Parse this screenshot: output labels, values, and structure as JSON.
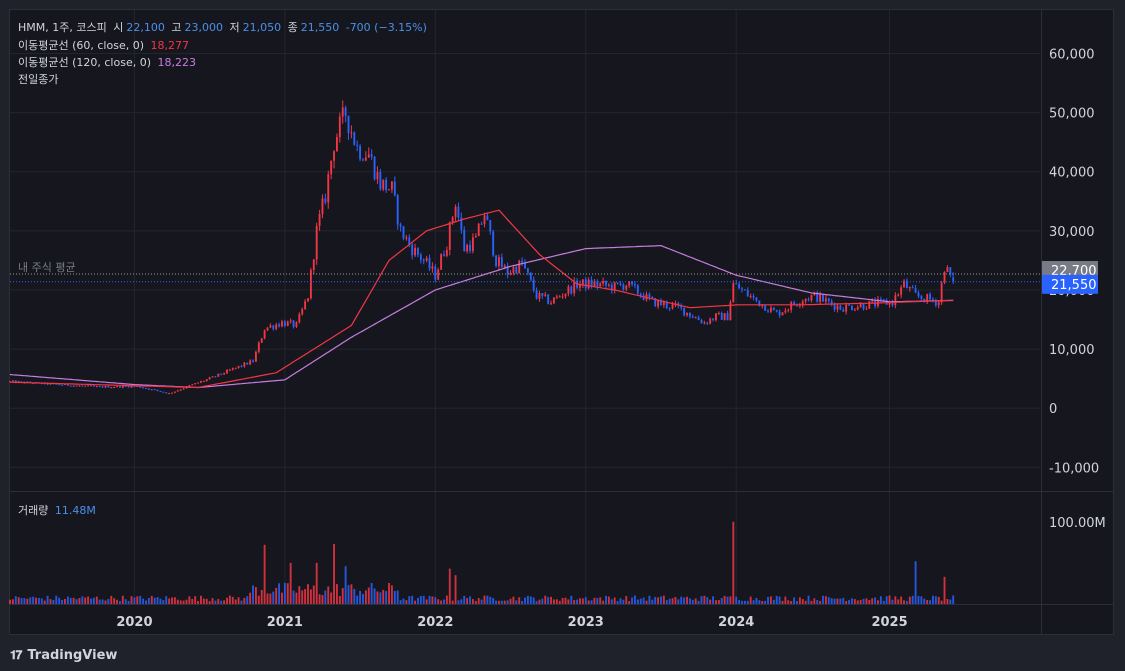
{
  "header": {
    "symbol": "HMM, 1주, 코스피",
    "open_label": "시",
    "open": "22,100",
    "high_label": "고",
    "high": "23,000",
    "low_label": "저",
    "low": "21,050",
    "close_label": "종",
    "close": "21,550",
    "change": "-700 (−3.15%)"
  },
  "indicators": {
    "ma60_label": "이동평균선 (60, close, 0)",
    "ma60_value": "18,277",
    "ma120_label": "이동평균선 (120, close, 0)",
    "ma120_value": "18,223",
    "prev_close_label": "전일종가"
  },
  "volume_pane": {
    "label": "거래량",
    "value": "11.48M",
    "axis_tick": "100.00M"
  },
  "footer": {
    "brand": "TradingView"
  },
  "chart_data": [
    {
      "type": "candlestick",
      "title": "HMM, 1주, 코스피",
      "ylim": [
        -14000,
        66000
      ],
      "y_ticks": [
        -10000,
        0,
        10000,
        20000,
        30000,
        40000,
        50000,
        60000
      ],
      "y_tick_labels": [
        "-10,000",
        "0",
        "10,000",
        "20,000",
        "30,000",
        "40,000",
        "50,000",
        "60,000"
      ],
      "x_ticks": [
        "2019-12-30",
        "2020-12-28",
        "2021-12-27",
        "2022-12-26",
        "2023-12-25",
        "2024-12-30"
      ],
      "x_tick_labels": [
        "2020",
        "2021",
        "2022",
        "2023",
        "2024",
        "2025"
      ],
      "x_start": "2019-03-04",
      "x_end": "2025-12-29",
      "grid": true,
      "avg_price_line": {
        "label": "내 주식 평균",
        "value": 22700
      },
      "price_badges": [
        {
          "text": "22,700",
          "value": 22700,
          "color": "#787b86"
        },
        {
          "text": "21,550",
          "value": 21550,
          "color": "#2962ff"
        }
      ],
      "up_color": "#f23645",
      "down_color": "#2962ff",
      "ma60_color": "#f23645",
      "ma120_color": "#c77de0",
      "close_anchors": [
        [
          "2019-03-04",
          4500
        ],
        [
          "2019-07-01",
          4000
        ],
        [
          "2019-10-07",
          3600
        ],
        [
          "2020-01-06",
          3700
        ],
        [
          "2020-03-23",
          2500
        ],
        [
          "2020-05-11",
          3800
        ],
        [
          "2020-07-06",
          5200
        ],
        [
          "2020-09-07",
          7000
        ],
        [
          "2020-10-12",
          8000
        ],
        [
          "2020-11-09",
          13500
        ],
        [
          "2020-12-21",
          14500
        ],
        [
          "2021-01-25",
          14000
        ],
        [
          "2021-02-22",
          19000
        ],
        [
          "2021-03-15",
          30000
        ],
        [
          "2021-04-05",
          36000
        ],
        [
          "2021-04-26",
          45000
        ],
        [
          "2021-05-24",
          50000
        ],
        [
          "2021-06-21",
          44000
        ],
        [
          "2021-07-19",
          43000
        ],
        [
          "2021-08-16",
          38000
        ],
        [
          "2021-09-13",
          37000
        ],
        [
          "2021-10-04",
          30000
        ],
        [
          "2021-11-01",
          27000
        ],
        [
          "2021-11-29",
          25000
        ],
        [
          "2021-12-27",
          22500
        ],
        [
          "2022-01-24",
          28000
        ],
        [
          "2022-02-14",
          35000
        ],
        [
          "2022-03-07",
          27000
        ],
        [
          "2022-04-04",
          28500
        ],
        [
          "2022-04-25",
          33000
        ],
        [
          "2022-05-23",
          25000
        ],
        [
          "2022-06-20",
          23000
        ],
        [
          "2022-07-25",
          24500
        ],
        [
          "2022-08-29",
          19000
        ],
        [
          "2022-10-03",
          18000
        ],
        [
          "2022-12-05",
          21000
        ],
        [
          "2023-01-16",
          21000
        ],
        [
          "2023-03-06",
          20500
        ],
        [
          "2023-04-03",
          21000
        ],
        [
          "2023-06-05",
          18000
        ],
        [
          "2023-08-07",
          17000
        ],
        [
          "2023-10-09",
          14500
        ],
        [
          "2023-11-06",
          15500
        ],
        [
          "2023-12-04",
          15500
        ],
        [
          "2023-12-18",
          21000
        ],
        [
          "2024-02-05",
          18500
        ],
        [
          "2024-04-01",
          16000
        ],
        [
          "2024-06-03",
          18500
        ],
        [
          "2024-07-01",
          19000
        ],
        [
          "2024-09-02",
          17000
        ],
        [
          "2024-11-04",
          17500
        ],
        [
          "2025-01-06",
          18000
        ],
        [
          "2025-02-03",
          21000
        ],
        [
          "2025-03-03",
          19000
        ],
        [
          "2025-04-28",
          18000
        ],
        [
          "2025-05-12",
          24000
        ],
        [
          "2025-06-02",
          21550
        ]
      ],
      "ma60_anchors": [
        [
          "2019-03-04",
          4400
        ],
        [
          "2020-06-01",
          3500
        ],
        [
          "2020-12-07",
          6000
        ],
        [
          "2021-06-07",
          14000
        ],
        [
          "2021-09-06",
          25000
        ],
        [
          "2021-12-06",
          30000
        ],
        [
          "2022-03-07",
          32000
        ],
        [
          "2022-05-30",
          33500
        ],
        [
          "2022-09-05",
          26000
        ],
        [
          "2022-12-05",
          21000
        ],
        [
          "2023-03-06",
          20000
        ],
        [
          "2023-06-05",
          18500
        ],
        [
          "2023-09-04",
          17000
        ],
        [
          "2024-01-01",
          17500
        ],
        [
          "2024-06-03",
          17500
        ],
        [
          "2024-12-02",
          17800
        ],
        [
          "2025-06-02",
          18277
        ]
      ],
      "ma120_anchors": [
        [
          "2019-03-04",
          5700
        ],
        [
          "2019-12-30",
          4000
        ],
        [
          "2020-06-01",
          3500
        ],
        [
          "2020-12-28",
          4800
        ],
        [
          "2021-06-07",
          12000
        ],
        [
          "2021-12-27",
          20000
        ],
        [
          "2022-06-27",
          24000
        ],
        [
          "2022-12-26",
          27000
        ],
        [
          "2023-06-26",
          27500
        ],
        [
          "2023-12-25",
          22500
        ],
        [
          "2024-06-24",
          19500
        ],
        [
          "2024-12-30",
          18000
        ],
        [
          "2025-06-02",
          18223
        ]
      ]
    },
    {
      "type": "bar",
      "title": "거래량",
      "unit": "M",
      "ylim": [
        0,
        135
      ],
      "y_ticks": [
        100
      ],
      "up_color": "#f23645",
      "down_color": "#2962ff",
      "base_volume_m": 7,
      "spikes": [
        [
          "2020-11-09",
          72
        ],
        [
          "2021-01-11",
          50
        ],
        [
          "2021-03-15",
          50
        ],
        [
          "2021-04-26",
          73
        ],
        [
          "2021-05-24",
          46
        ],
        [
          "2022-01-31",
          43
        ],
        [
          "2022-02-14",
          35
        ],
        [
          "2023-12-18",
          100
        ],
        [
          "2025-03-03",
          52
        ],
        [
          "2025-05-12",
          33
        ]
      ]
    }
  ]
}
